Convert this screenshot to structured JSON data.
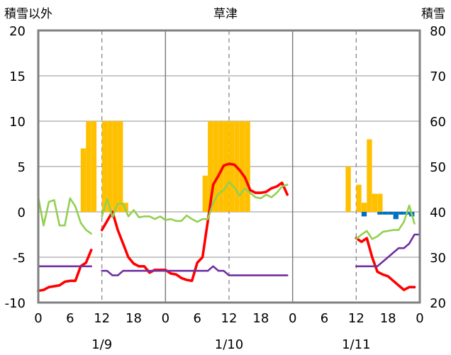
{
  "chart_data": {
    "type": "bar+line",
    "title": "草津",
    "left_axis_title": "積雪以外",
    "right_axis_title": "積雪",
    "left_ylim": [
      -10,
      20
    ],
    "left_yticks": [
      "20",
      "15",
      "10",
      "5",
      "0",
      "-5",
      "-10"
    ],
    "right_ylim": [
      20,
      80
    ],
    "right_yticks": [
      "80",
      "70",
      "60",
      "50",
      "40",
      "30",
      "20"
    ],
    "x_hours_range": [
      0,
      72
    ],
    "x_tick_labels": [
      "0",
      "6",
      "12",
      "18",
      "0",
      "6",
      "12",
      "18",
      "0",
      "6",
      "12",
      "18",
      "0"
    ],
    "date_labels": [
      {
        "hour": 12,
        "text": "1/9"
      },
      {
        "hour": 36,
        "text": "1/10"
      },
      {
        "hour": 60,
        "text": "1/11"
      }
    ],
    "grid": {
      "vertical_dashed_hours": [
        12,
        36,
        60
      ],
      "vertical_solid_hours": [
        24,
        48
      ],
      "horizontal_solid_values": [
        15,
        10,
        5,
        0,
        -5
      ]
    },
    "colors": {
      "snowfall": "#FFC000",
      "negative_bar": "#0070C0",
      "temperature": "#FF0000",
      "humidity_line": "#92D050",
      "snow_depth": "#7030A0",
      "frame": "#808080"
    },
    "bars_positive": [
      {
        "hour": 8,
        "value": 7
      },
      {
        "hour": 9,
        "value": 10
      },
      {
        "hour": 10,
        "value": 10
      },
      {
        "hour": 12,
        "value": 10
      },
      {
        "hour": 13,
        "value": 10
      },
      {
        "hour": 14,
        "value": 10
      },
      {
        "hour": 15,
        "value": 10
      },
      {
        "hour": 16,
        "value": 1
      },
      {
        "hour": 31,
        "value": 4
      },
      {
        "hour": 32,
        "value": 10
      },
      {
        "hour": 33,
        "value": 10
      },
      {
        "hour": 34,
        "value": 10
      },
      {
        "hour": 35,
        "value": 10
      },
      {
        "hour": 36,
        "value": 10
      },
      {
        "hour": 37,
        "value": 10
      },
      {
        "hour": 38,
        "value": 10
      },
      {
        "hour": 39,
        "value": 10
      },
      {
        "hour": 58,
        "value": 5
      },
      {
        "hour": 60,
        "value": 3
      },
      {
        "hour": 61,
        "value": 1
      },
      {
        "hour": 62,
        "value": 8
      },
      {
        "hour": 63,
        "value": 2
      },
      {
        "hour": 64,
        "value": 2
      }
    ],
    "bars_negative": [
      {
        "hour": 61,
        "value": -0.5
      },
      {
        "hour": 64,
        "value": -0.3
      },
      {
        "hour": 65,
        "value": -0.3
      },
      {
        "hour": 66,
        "value": -0.3
      },
      {
        "hour": 67,
        "value": -0.8
      },
      {
        "hour": 68,
        "value": -0.3
      },
      {
        "hour": 69,
        "value": -0.3
      },
      {
        "hour": 70,
        "value": -0.5
      }
    ],
    "series": [
      {
        "key": "temperature",
        "axis": "left",
        "segments": [
          [
            [
              0,
              -8.7
            ],
            [
              1,
              -8.6
            ],
            [
              2,
              -8.3
            ],
            [
              3,
              -8.2
            ],
            [
              4,
              -8.1
            ],
            [
              5,
              -7.7
            ],
            [
              6,
              -7.6
            ],
            [
              7,
              -7.6
            ],
            [
              8,
              -6
            ],
            [
              9,
              -5.6
            ],
            [
              10,
              -4.2
            ]
          ],
          [
            [
              12,
              -2
            ],
            [
              13,
              -1
            ],
            [
              14,
              0
            ],
            [
              15,
              -2
            ],
            [
              16,
              -3.5
            ],
            [
              17,
              -5
            ],
            [
              18,
              -5.7
            ],
            [
              19,
              -6
            ],
            [
              20,
              -6
            ],
            [
              21,
              -6.7
            ],
            [
              22,
              -6.4
            ],
            [
              23,
              -6.4
            ],
            [
              24,
              -6.4
            ],
            [
              25,
              -6.8
            ],
            [
              26,
              -6.9
            ],
            [
              27,
              -7.3
            ],
            [
              28,
              -7.5
            ],
            [
              29,
              -7.6
            ],
            [
              30,
              -5.6
            ],
            [
              31,
              -5
            ],
            [
              32,
              -1
            ],
            [
              33,
              3
            ],
            [
              34,
              4
            ],
            [
              35,
              5.1
            ],
            [
              36,
              5.3
            ],
            [
              37,
              5.2
            ],
            [
              38,
              4.6
            ],
            [
              39,
              3.8
            ],
            [
              40,
              2.4
            ],
            [
              41,
              2.1
            ],
            [
              42,
              2.1
            ],
            [
              43,
              2.2
            ],
            [
              44,
              2.6
            ],
            [
              45,
              2.8
            ],
            [
              46,
              3.2
            ],
            [
              47,
              1.9
            ]
          ],
          [
            [
              60,
              -2.9
            ],
            [
              61,
              -3.3
            ],
            [
              62,
              -2.9
            ],
            [
              63,
              -5
            ],
            [
              64,
              -6.6
            ],
            [
              65,
              -6.9
            ],
            [
              66,
              -7.1
            ],
            [
              67,
              -7.6
            ],
            [
              68,
              -8.1
            ],
            [
              69,
              -8.6
            ],
            [
              70,
              -8.3
            ],
            [
              71,
              -8.3
            ]
          ]
        ]
      },
      {
        "key": "humidity_line",
        "axis": "left",
        "segments": [
          [
            [
              0,
              1.6
            ],
            [
              1,
              -1.5
            ],
            [
              2,
              1.1
            ],
            [
              3,
              1.3
            ],
            [
              4,
              -1.5
            ],
            [
              5,
              -1.5
            ],
            [
              6,
              1.5
            ],
            [
              7,
              0.6
            ],
            [
              8,
              -1.2
            ],
            [
              9,
              -2
            ],
            [
              10,
              -2.4
            ]
          ],
          [
            [
              12,
              -0.5
            ],
            [
              13,
              1.4
            ],
            [
              14,
              -0.6
            ],
            [
              15,
              0.9
            ],
            [
              16,
              0.9
            ],
            [
              17,
              -0.5
            ],
            [
              18,
              0.2
            ],
            [
              19,
              -0.6
            ],
            [
              20,
              -0.5
            ],
            [
              21,
              -0.5
            ],
            [
              22,
              -0.8
            ],
            [
              23,
              -0.5
            ],
            [
              24,
              -0.9
            ],
            [
              25,
              -0.8
            ],
            [
              26,
              -1
            ],
            [
              27,
              -1
            ],
            [
              28,
              -0.4
            ],
            [
              29,
              -0.8
            ],
            [
              30,
              -1.1
            ],
            [
              31,
              -0.8
            ],
            [
              32,
              -0.8
            ],
            [
              33,
              1
            ],
            [
              34,
              2
            ],
            [
              35,
              2.4
            ],
            [
              36,
              3.3
            ],
            [
              37,
              2.7
            ],
            [
              38,
              1.8
            ],
            [
              39,
              2.6
            ],
            [
              40,
              2.1
            ],
            [
              41,
              1.6
            ],
            [
              42,
              1.5
            ],
            [
              43,
              1.9
            ],
            [
              44,
              1.6
            ],
            [
              45,
              2.1
            ],
            [
              46,
              2.8
            ],
            [
              47,
              3
            ]
          ],
          [
            [
              60,
              -3
            ],
            [
              61,
              -2.5
            ],
            [
              62,
              -2.1
            ],
            [
              63,
              -3
            ],
            [
              64,
              -2.7
            ],
            [
              65,
              -2.2
            ],
            [
              66,
              -2.1
            ],
            [
              67,
              -2
            ],
            [
              68,
              -2
            ],
            [
              69,
              -1.1
            ],
            [
              70,
              0.7
            ],
            [
              71,
              -1.3
            ]
          ]
        ]
      },
      {
        "key": "snow_depth",
        "axis": "left",
        "segments": [
          [
            [
              0,
              -6
            ],
            [
              1,
              -6
            ],
            [
              2,
              -6
            ],
            [
              3,
              -6
            ],
            [
              4,
              -6
            ],
            [
              5,
              -6
            ],
            [
              6,
              -6
            ],
            [
              7,
              -6
            ],
            [
              8,
              -6
            ],
            [
              9,
              -6
            ],
            [
              10,
              -6
            ]
          ],
          [
            [
              12,
              -6.5
            ],
            [
              13,
              -6.5
            ],
            [
              14,
              -7
            ],
            [
              15,
              -7
            ],
            [
              16,
              -6.5
            ],
            [
              17,
              -6.5
            ],
            [
              18,
              -6.5
            ],
            [
              19,
              -6.5
            ],
            [
              20,
              -6.5
            ],
            [
              21,
              -6.5
            ],
            [
              22,
              -6.5
            ],
            [
              23,
              -6.5
            ],
            [
              24,
              -6.5
            ],
            [
              25,
              -6.5
            ],
            [
              26,
              -6.5
            ],
            [
              27,
              -6.5
            ],
            [
              28,
              -6.5
            ],
            [
              29,
              -6.5
            ],
            [
              30,
              -6.5
            ],
            [
              31,
              -6.5
            ],
            [
              32,
              -6.5
            ],
            [
              33,
              -6
            ],
            [
              34,
              -6.5
            ],
            [
              35,
              -6.5
            ],
            [
              36,
              -7
            ],
            [
              37,
              -7
            ],
            [
              38,
              -7
            ],
            [
              39,
              -7
            ],
            [
              40,
              -7
            ],
            [
              41,
              -7
            ],
            [
              42,
              -7
            ],
            [
              43,
              -7
            ],
            [
              44,
              -7
            ],
            [
              45,
              -7
            ],
            [
              46,
              -7
            ],
            [
              47,
              -7
            ]
          ],
          [
            [
              60,
              -6
            ],
            [
              61,
              -6
            ],
            [
              62,
              -6
            ],
            [
              63,
              -6
            ],
            [
              64,
              -6
            ],
            [
              65,
              -5.5
            ],
            [
              66,
              -5
            ],
            [
              67,
              -4.5
            ],
            [
              68,
              -4
            ],
            [
              69,
              -4
            ],
            [
              70,
              -3.5
            ],
            [
              71,
              -2.5
            ],
            [
              72,
              -2.5
            ]
          ]
        ]
      }
    ]
  }
}
